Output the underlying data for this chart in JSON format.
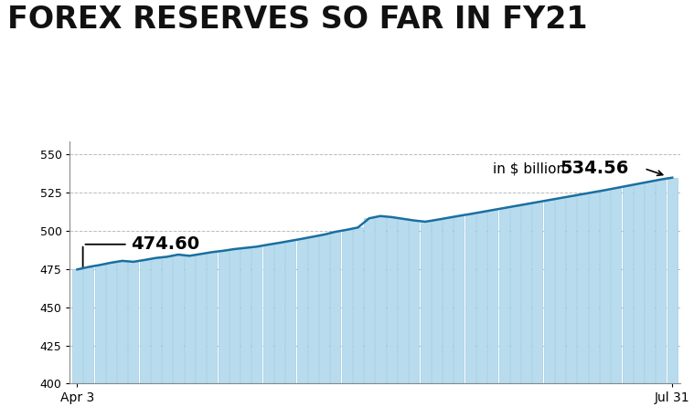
{
  "title": "FOREX RESERVES SO FAR IN FY21",
  "values": [
    474.6,
    476.2,
    477.5,
    479.0,
    480.2,
    479.6,
    480.8,
    482.1,
    482.9,
    484.3,
    483.5,
    484.7,
    485.9,
    486.8,
    487.9,
    488.7,
    489.5,
    490.8,
    492.0,
    493.3,
    494.6,
    496.0,
    497.4,
    499.2,
    500.5,
    502.0,
    508.0,
    509.5,
    508.8,
    507.7,
    506.6,
    505.8,
    507.0,
    508.3,
    509.6,
    510.8,
    512.1,
    513.4,
    514.7,
    516.0,
    517.3,
    518.6,
    519.9,
    521.2,
    522.5,
    523.8,
    525.1,
    526.4,
    527.8,
    529.2,
    530.6,
    532.0,
    533.4,
    534.56
  ],
  "first_label": "474.60",
  "last_label": "534.56",
  "first_x_label": "Apr 3",
  "last_x_label": "Jul 31",
  "annotation_label": "in $ billion",
  "ylim": [
    400,
    558
  ],
  "yticks": [
    400,
    425,
    450,
    475,
    500,
    525,
    550
  ],
  "bar_color": "#b8dcee",
  "bar_edge_color": "#8ec4e0",
  "line_color": "#1a6fa0",
  "bg_color": "#ffffff",
  "plot_bg_color": "#ffffff",
  "grid_color": "#aaaaaa",
  "title_color": "#111111",
  "title_fontsize": 24,
  "annotation_fontsize": 11,
  "value_fontsize": 14
}
